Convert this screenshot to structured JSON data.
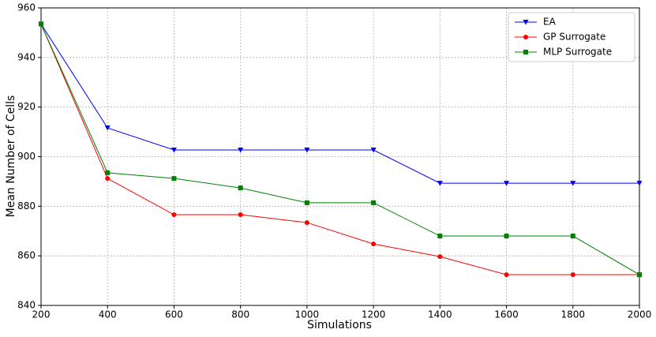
{
  "chart_data": {
    "type": "line",
    "x_label": "Simulations",
    "y_label": "Mean Number of Cells",
    "x": [
      200,
      400,
      600,
      800,
      1000,
      1200,
      1400,
      1600,
      1800,
      2000
    ],
    "series": [
      {
        "name": "EA",
        "color": "#0000ff",
        "marker": "triangle-down",
        "values": [
          953.5,
          911.6,
          902.7,
          902.7,
          902.7,
          902.7,
          889.3,
          889.3,
          889.3,
          889.3
        ]
      },
      {
        "name": "GP Surrogate",
        "color": "#ff0000",
        "marker": "circle",
        "values": [
          953.5,
          891.2,
          876.6,
          876.6,
          873.4,
          864.8,
          859.7,
          852.4,
          852.4,
          852.4
        ]
      },
      {
        "name": "MLP Surrogate",
        "color": "#008000",
        "marker": "square",
        "values": [
          953.5,
          893.5,
          891.2,
          887.4,
          881.4,
          881.4,
          868,
          868,
          868,
          852.4
        ]
      }
    ],
    "xlim": [
      200,
      2000
    ],
    "xticks": [
      200,
      400,
      600,
      800,
      1000,
      1200,
      1400,
      1600,
      1800,
      2000
    ],
    "ylim": [
      840,
      960
    ],
    "yticks": [
      840,
      860,
      880,
      900,
      920,
      940,
      960
    ],
    "grid": true,
    "legend": "upper-right"
  }
}
